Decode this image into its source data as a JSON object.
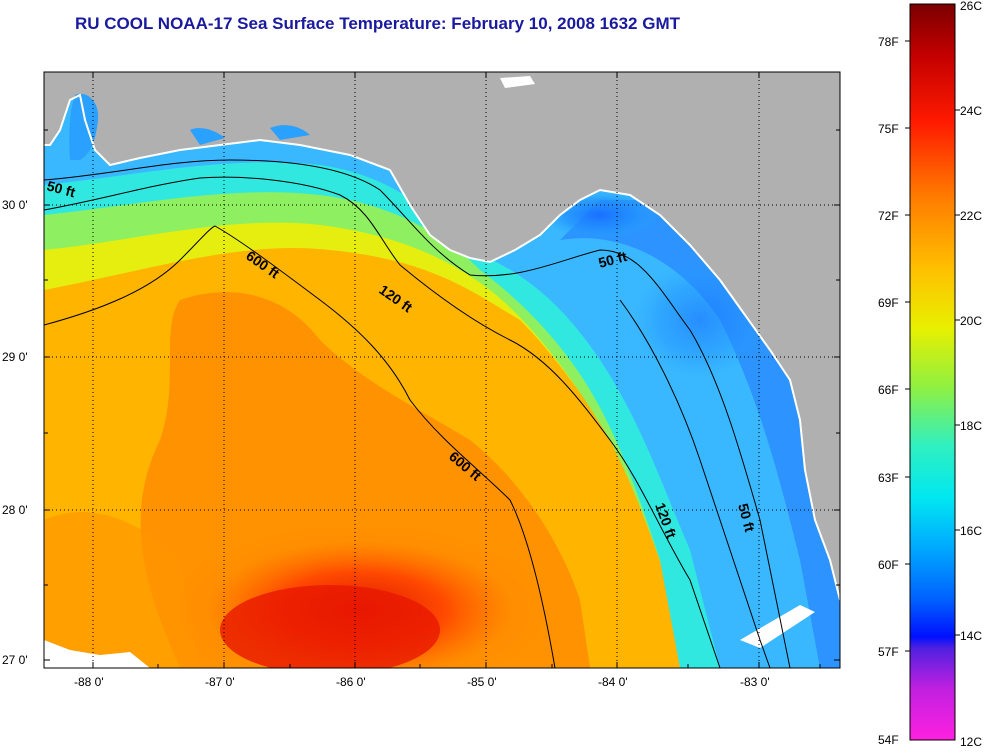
{
  "title": "RU COOL  NOAA-17  Sea Surface Temperature:  February 10, 2008 1632 GMT",
  "map": {
    "lat_labels": [
      "30 0'",
      "29 0'",
      "28 0'",
      "27 0'"
    ],
    "lon_labels": [
      "-88 0'",
      "-87 0'",
      "-86 0'",
      "-85 0'",
      "-84 0'",
      "-83 0'"
    ],
    "land_color": "#b0b0b0",
    "contour_labels": [
      "50 ft",
      "600 ft",
      "120 ft",
      "50 ft",
      "600 ft",
      "120 ft",
      "50 ft"
    ]
  },
  "colorbar": {
    "fahrenheit_labels": [
      "78F",
      "75F",
      "72F",
      "69F",
      "66F",
      "63F",
      "60F",
      "57F",
      "54F"
    ],
    "celsius_labels": [
      "26C",
      "24C",
      "22C",
      "20C",
      "18C",
      "16C",
      "14C",
      "12C"
    ],
    "range_c": [
      12,
      26
    ]
  }
}
